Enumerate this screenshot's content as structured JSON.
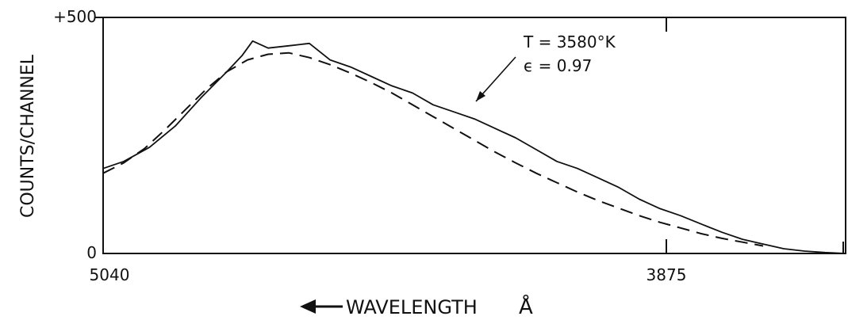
{
  "chart_data": {
    "type": "line",
    "title": "",
    "xlabel": "WAVELENGTH",
    "xlabel_unit": "Å",
    "xlabel_arrow": "left",
    "ylabel": "COUNTS/CHANNEL",
    "x_tick_labels": [
      "5040",
      "3875"
    ],
    "y_tick_labels": [
      "0",
      "+500"
    ],
    "xlim": [
      5040,
      3600
    ],
    "ylim": [
      0,
      500
    ],
    "annotation": {
      "lines": [
        "T = 3580°K",
        "ϵ = 0.97"
      ],
      "points_to": "fit"
    },
    "series": [
      {
        "style": "solid",
        "x": [
          5040,
          5000,
          4950,
          4900,
          4850,
          4800,
          4770,
          4750,
          4720,
          4680,
          4640,
          4600,
          4560,
          4520,
          4480,
          4440,
          4400,
          4360,
          4320,
          4280,
          4240,
          4200,
          4160,
          4120,
          4080,
          4040,
          4000,
          3960,
          3920,
          3875,
          3840,
          3800,
          3760,
          3720,
          3680,
          3640,
          3600
        ],
        "y": [
          180,
          195,
          225,
          270,
          330,
          385,
          420,
          450,
          435,
          440,
          445,
          410,
          395,
          375,
          355,
          340,
          315,
          300,
          285,
          265,
          245,
          220,
          195,
          180,
          160,
          140,
          115,
          95,
          80,
          60,
          45,
          30,
          20,
          10,
          5,
          2,
          0
        ]
      },
      {
        "style": "dashed",
        "x": [
          5040,
          5000,
          4960,
          4920,
          4880,
          4840,
          4800,
          4760,
          4720,
          4680,
          4640,
          4600,
          4560,
          4520,
          4480,
          4440,
          4400,
          4360,
          4320,
          4280,
          4240,
          4200,
          4160,
          4120,
          4080,
          4040,
          4000,
          3960,
          3920,
          3880,
          3840,
          3800,
          3760
        ],
        "y": [
          170,
          192,
          222,
          262,
          305,
          348,
          385,
          410,
          422,
          425,
          415,
          400,
          382,
          362,
          340,
          315,
          290,
          265,
          240,
          215,
          192,
          170,
          150,
          130,
          112,
          96,
          80,
          66,
          54,
          42,
          32,
          24,
          16
        ]
      }
    ]
  }
}
